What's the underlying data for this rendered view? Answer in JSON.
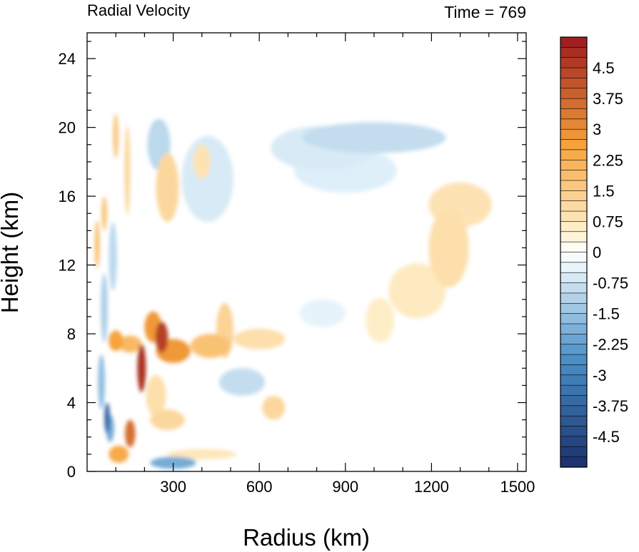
{
  "chart_data": {
    "type": "heatmap",
    "title": "Radial Velocity",
    "subtitle": "Time = 769",
    "xlabel": "Radius (km)",
    "ylabel": "Height (km)",
    "xlim": [
      0,
      1530
    ],
    "ylim": [
      0,
      25.5
    ],
    "x_ticks": [
      300,
      600,
      900,
      1200,
      1500
    ],
    "y_ticks": [
      0,
      4,
      8,
      12,
      16,
      20,
      24
    ],
    "colorbar": {
      "min": -5.25,
      "max": 5.25,
      "step": 0.25,
      "tick_labels": [
        "4.5",
        "3.75",
        "3",
        "2.25",
        "1.5",
        "0.75",
        "0",
        "-0.75",
        "-1.5",
        "-2.25",
        "-3",
        "-3.75",
        "-4.5"
      ],
      "tick_values": [
        4.5,
        3.75,
        3,
        2.25,
        1.5,
        0.75,
        0,
        -0.75,
        -1.5,
        -2.25,
        -3,
        -3.75,
        -4.5
      ],
      "colors": {
        "neg_max": "#1a2f6b",
        "neg_mid": "#4a90c8",
        "neg_low": "#e6f3fb",
        "zero": "#ffffff",
        "pos_low": "#fff5d6",
        "pos_mid": "#f6a33a",
        "pos_max": "#9b1a1f"
      }
    },
    "features": [
      {
        "x": 190,
        "y": 6.0,
        "value": 4.8,
        "rx": 15,
        "ry": 1.4
      },
      {
        "x": 260,
        "y": 7.8,
        "value": 4.5,
        "rx": 22,
        "ry": 0.9
      },
      {
        "x": 230,
        "y": 8.4,
        "value": 2.8,
        "rx": 30,
        "ry": 0.9
      },
      {
        "x": 300,
        "y": 7.0,
        "value": 2.8,
        "rx": 60,
        "ry": 0.7
      },
      {
        "x": 430,
        "y": 7.3,
        "value": 1.8,
        "rx": 70,
        "ry": 0.7
      },
      {
        "x": 480,
        "y": 8.2,
        "value": 1.3,
        "rx": 30,
        "ry": 1.6
      },
      {
        "x": 600,
        "y": 7.7,
        "value": 1.0,
        "rx": 90,
        "ry": 0.6
      },
      {
        "x": 100,
        "y": 7.6,
        "value": 2.6,
        "rx": 25,
        "ry": 0.6
      },
      {
        "x": 150,
        "y": 7.4,
        "value": 2.0,
        "rx": 40,
        "ry": 0.5
      },
      {
        "x": 150,
        "y": 2.2,
        "value": 3.6,
        "rx": 18,
        "ry": 0.8
      },
      {
        "x": 110,
        "y": 1.0,
        "value": 2.4,
        "rx": 35,
        "ry": 0.5
      },
      {
        "x": 80,
        "y": 2.5,
        "value": -2.0,
        "rx": 14,
        "ry": 0.8
      },
      {
        "x": 70,
        "y": 3.1,
        "value": -3.6,
        "rx": 10,
        "ry": 0.9
      },
      {
        "x": 50,
        "y": 5.2,
        "value": -1.6,
        "rx": 12,
        "ry": 1.6
      },
      {
        "x": 60,
        "y": 9.5,
        "value": -1.2,
        "rx": 12,
        "ry": 2.0
      },
      {
        "x": 90,
        "y": 12.5,
        "value": -1.0,
        "rx": 14,
        "ry": 2.0
      },
      {
        "x": 35,
        "y": 13.2,
        "value": 1.8,
        "rx": 9,
        "ry": 1.4
      },
      {
        "x": 60,
        "y": 15.0,
        "value": 1.6,
        "rx": 10,
        "ry": 1.0
      },
      {
        "x": 100,
        "y": 19.5,
        "value": 1.6,
        "rx": 10,
        "ry": 1.3
      },
      {
        "x": 140,
        "y": 17.5,
        "value": 1.2,
        "rx": 10,
        "ry": 2.6
      },
      {
        "x": 250,
        "y": 19.0,
        "value": -1.0,
        "rx": 40,
        "ry": 1.5
      },
      {
        "x": 280,
        "y": 16.5,
        "value": 1.2,
        "rx": 40,
        "ry": 2.0
      },
      {
        "x": 400,
        "y": 18.0,
        "value": 0.9,
        "rx": 30,
        "ry": 1.0
      },
      {
        "x": 420,
        "y": 17.0,
        "value": -0.6,
        "rx": 90,
        "ry": 2.5
      },
      {
        "x": 540,
        "y": 5.2,
        "value": -0.9,
        "rx": 80,
        "ry": 0.8
      },
      {
        "x": 280,
        "y": 3.0,
        "value": 1.2,
        "rx": 60,
        "ry": 0.6
      },
      {
        "x": 240,
        "y": 4.4,
        "value": 1.0,
        "rx": 35,
        "ry": 1.2
      },
      {
        "x": 650,
        "y": 3.7,
        "value": 1.2,
        "rx": 40,
        "ry": 0.7
      },
      {
        "x": 300,
        "y": 0.5,
        "value": -2.0,
        "rx": 80,
        "ry": 0.35
      },
      {
        "x": 400,
        "y": 1.0,
        "value": 0.8,
        "rx": 120,
        "ry": 0.3
      },
      {
        "x": 1000,
        "y": 19.4,
        "value": -0.9,
        "rx": 250,
        "ry": 0.9
      },
      {
        "x": 820,
        "y": 18.8,
        "value": -0.6,
        "rx": 180,
        "ry": 1.3
      },
      {
        "x": 900,
        "y": 17.5,
        "value": -0.5,
        "rx": 180,
        "ry": 1.3
      },
      {
        "x": 1260,
        "y": 13.0,
        "value": 1.0,
        "rx": 70,
        "ry": 2.3
      },
      {
        "x": 1300,
        "y": 15.5,
        "value": 0.9,
        "rx": 110,
        "ry": 1.3
      },
      {
        "x": 1150,
        "y": 10.5,
        "value": 0.7,
        "rx": 100,
        "ry": 1.6
      },
      {
        "x": 1020,
        "y": 8.8,
        "value": 0.6,
        "rx": 50,
        "ry": 1.3
      },
      {
        "x": 820,
        "y": 9.2,
        "value": -0.4,
        "rx": 80,
        "ry": 0.8
      }
    ]
  }
}
